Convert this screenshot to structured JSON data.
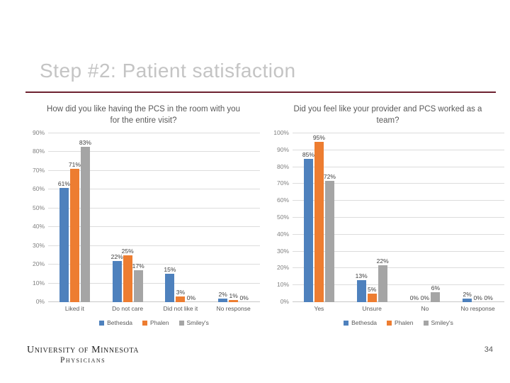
{
  "slide": {
    "title": "Step #2: Patient satisfaction",
    "page_number": "34",
    "footer_logo": {
      "line1": "University of Minnesota",
      "line2": "Physicians"
    }
  },
  "colors": {
    "title_gray": "#c4c4c4",
    "accent_rule_maroon": "#6d2230",
    "series_blue": "#4e81bd",
    "series_orange": "#ed7d31",
    "series_gray": "#a5a5a5"
  },
  "chart_data": [
    {
      "type": "bar",
      "title": "How did you like having the PCS in the room with you for the entire visit?",
      "categories": [
        "Liked it",
        "Do not care",
        "Did not like it",
        "No response"
      ],
      "series": [
        {
          "name": "Bethesda",
          "color": "#4e81bd",
          "values": [
            61,
            22,
            15,
            2
          ]
        },
        {
          "name": "Phalen",
          "color": "#ed7d31",
          "values": [
            71,
            25,
            3,
            1
          ]
        },
        {
          "name": "Smiley's",
          "color": "#a5a5a5",
          "values": [
            83,
            17,
            0,
            0
          ]
        }
      ],
      "data_labels": [
        [
          "61%",
          "22%",
          "15%",
          "2%"
        ],
        [
          "71%",
          "25%",
          "3%",
          "1%"
        ],
        [
          "83%",
          "17%",
          "0%",
          "0%"
        ]
      ],
      "ylabel": "",
      "xlabel": "",
      "ylim": [
        0,
        90
      ],
      "ytick_step": 10,
      "ytick_suffix": "%",
      "grid": true,
      "legend_position": "bottom"
    },
    {
      "type": "bar",
      "title": "Did you feel like your provider and PCS worked as a team?",
      "categories": [
        "Yes",
        "Unsure",
        "No",
        "No response"
      ],
      "series": [
        {
          "name": "Bethesda",
          "color": "#4e81bd",
          "values": [
            85,
            13,
            0,
            2
          ]
        },
        {
          "name": "Phalen",
          "color": "#ed7d31",
          "values": [
            95,
            5,
            0,
            0
          ]
        },
        {
          "name": "Smiley's",
          "color": "#a5a5a5",
          "values": [
            72,
            22,
            6,
            0
          ]
        }
      ],
      "data_labels": [
        [
          "85%",
          "13%",
          "0%",
          "2%"
        ],
        [
          "95%",
          "5%",
          "0%",
          "0%"
        ],
        [
          "72%",
          "22%",
          "6%",
          "0%"
        ]
      ],
      "ylabel": "",
      "xlabel": "",
      "ylim": [
        0,
        100
      ],
      "ytick_step": 10,
      "ytick_suffix": "%",
      "grid": true,
      "legend_position": "bottom"
    }
  ]
}
